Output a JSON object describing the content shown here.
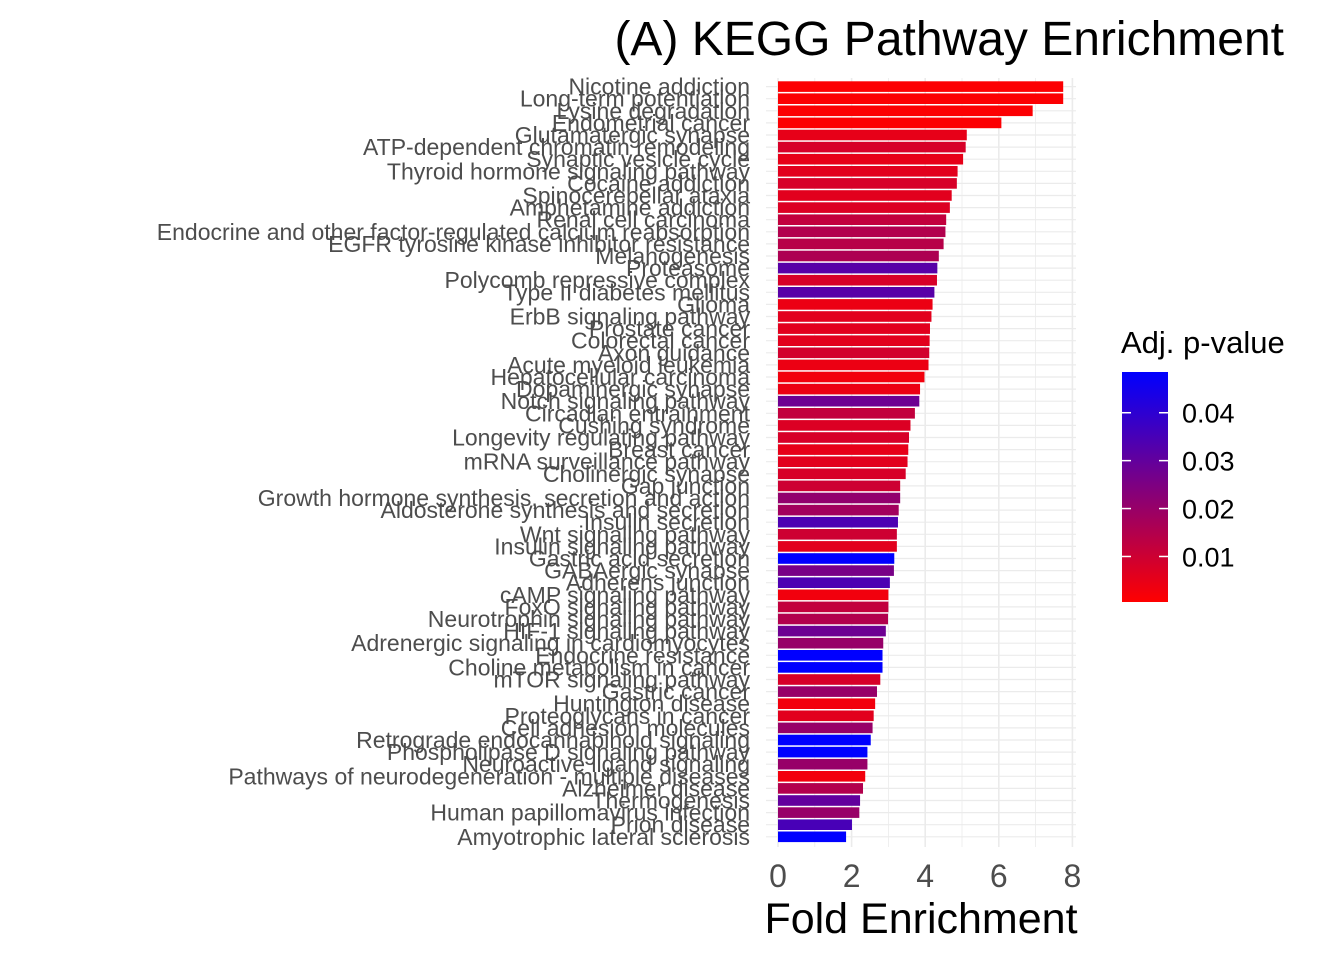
{
  "chart_data": {
    "type": "bar",
    "orientation": "horizontal",
    "title": "(A) KEGG Pathway Enrichment",
    "xlabel": "Fold Enrichment",
    "ylabel": "",
    "xlim": [
      0,
      8
    ],
    "xticks": [
      0,
      2,
      4,
      6,
      8
    ],
    "grid": true,
    "legend": {
      "title": "Adj. p-value",
      "placement": "right",
      "ticks": [
        "0.01",
        "0.02",
        "0.03",
        "0.04"
      ],
      "tick_values": [
        0.01,
        0.02,
        0.03,
        0.04
      ],
      "range": [
        0.0005,
        0.0485
      ],
      "color_low": "#ff0000",
      "color_high": "#0000ff"
    },
    "categories": [
      "Nicotine addiction",
      "Long-term potentiation",
      "Lysine degradation",
      "Endometrial cancer",
      "Glutamatergic synapse",
      "ATP-dependent chromatin remodeling",
      "Synaptic vesicle cycle",
      "Thyroid hormone signaling pathway",
      "Cocaine addiction",
      "Spinocerebellar ataxia",
      "Amphetamine addiction",
      "Renal cell carcinoma",
      "Endocrine and other factor-regulated calcium reabsorption",
      "EGFR tyrosine kinase inhibitor resistance",
      "Melanogenesis",
      "Proteasome",
      "Polycomb repressive complex",
      "Type II diabetes mellitus",
      "Glioma",
      "ErbB signaling pathway",
      "Prostate cancer",
      "Colorectal cancer",
      "Axon guidance",
      "Acute myeloid leukemia",
      "Hepatocellular carcinoma",
      "Dopaminergic synapse",
      "Notch signaling pathway",
      "Circadian entrainment",
      "Cushing syndrome",
      "Longevity regulating pathway",
      "Breast cancer",
      "mRNA surveillance pathway",
      "Cholinergic synapse",
      "Gap junction",
      "Growth hormone synthesis, secretion and action",
      "Aldosterone synthesis and secretion",
      "Insulin secretion",
      "Wnt signaling pathway",
      "Insulin signaling pathway",
      "Gastric acid secretion",
      "GABAergic synapse",
      "Adherens junction",
      "cAMP signaling pathway",
      "FoxO signaling pathway",
      "Neurotrophin signaling pathway",
      "HIF-1 signaling pathway",
      "Adrenergic signaling in cardiomyocytes",
      "Endocrine resistance",
      "Choline metabolism in cancer",
      "mTOR signaling pathway",
      "Gastric cancer",
      "Huntington disease",
      "Proteoglycans in cancer",
      "Cell adhesion molecules",
      "Retrograde endocannabinoid signaling",
      "Phospholipase D signaling pathway",
      "Neuroactive ligand signaling",
      "Pathways of neurodegeneration - multiple diseases",
      "Alzheimer disease",
      "Thermogenesis",
      "Human papillomavirus infection",
      "Prion disease",
      "Amyotrophic lateral sclerosis"
    ],
    "values": [
      7.75,
      7.75,
      6.92,
      6.07,
      5.13,
      5.1,
      5.03,
      4.88,
      4.86,
      4.72,
      4.67,
      4.57,
      4.55,
      4.5,
      4.37,
      4.33,
      4.32,
      4.25,
      4.2,
      4.17,
      4.13,
      4.12,
      4.11,
      4.09,
      3.98,
      3.86,
      3.84,
      3.72,
      3.6,
      3.56,
      3.54,
      3.52,
      3.47,
      3.32,
      3.32,
      3.28,
      3.26,
      3.23,
      3.23,
      3.16,
      3.15,
      3.04,
      3.0,
      3.0,
      2.99,
      2.93,
      2.86,
      2.84,
      2.84,
      2.78,
      2.69,
      2.64,
      2.6,
      2.57,
      2.52,
      2.43,
      2.43,
      2.37,
      2.31,
      2.23,
      2.21,
      2.01,
      1.85
    ],
    "padj": [
      0.001,
      0.001,
      0.001,
      0.001,
      0.005,
      0.008,
      0.005,
      0.006,
      0.008,
      0.006,
      0.007,
      0.012,
      0.015,
      0.014,
      0.016,
      0.032,
      0.008,
      0.032,
      0.004,
      0.006,
      0.006,
      0.006,
      0.009,
      0.004,
      0.003,
      0.004,
      0.028,
      0.012,
      0.007,
      0.008,
      0.005,
      0.006,
      0.008,
      0.01,
      0.021,
      0.018,
      0.034,
      0.01,
      0.006,
      0.0485,
      0.026,
      0.034,
      0.003,
      0.012,
      0.015,
      0.028,
      0.02,
      0.0485,
      0.0485,
      0.008,
      0.02,
      0.003,
      0.006,
      0.02,
      0.0485,
      0.0485,
      0.02,
      0.003,
      0.015,
      0.03,
      0.02,
      0.035,
      0.0485
    ]
  }
}
